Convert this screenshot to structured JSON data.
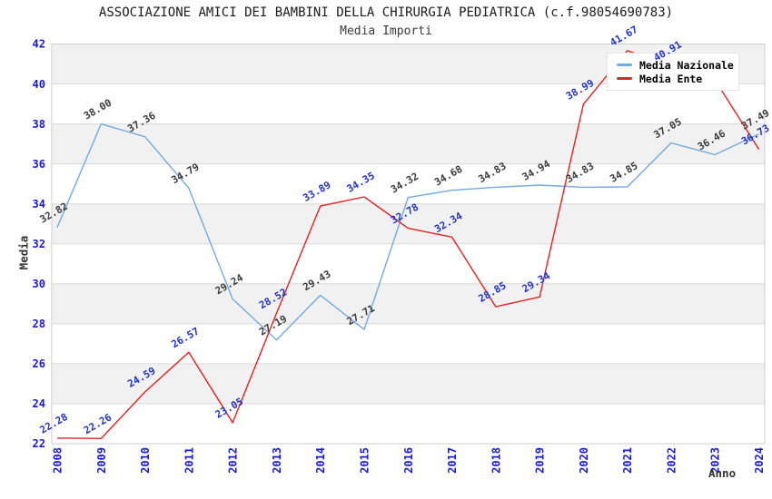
{
  "title": "ASSOCIAZIONE AMICI DEI BAMBINI DELLA CHIRURGIA PEDIATRICA (c.f.98054690783)",
  "subtitle": "Media Importi",
  "legend": {
    "items": [
      {
        "label": "Media Nazionale",
        "color": "#74a9e0"
      },
      {
        "label": "Media Ente",
        "color": "#e62222"
      }
    ]
  },
  "axes": {
    "x_label": "Anno",
    "y_label": "Media",
    "tick_color": "#1a1ad1",
    "y_ticks": [
      22,
      24,
      26,
      28,
      30,
      32,
      34,
      36,
      38,
      40,
      42
    ]
  },
  "chart_data": {
    "type": "line",
    "title": "ASSOCIAZIONE AMICI DEI BAMBINI DELLA CHIRURGIA PEDIATRICA (c.f.98054690783)",
    "subtitle": "Media Importi",
    "xlabel": "Anno",
    "ylabel": "Media",
    "x": [
      "2008",
      "2009",
      "2010",
      "2011",
      "2012",
      "2013",
      "2014",
      "2015",
      "2016",
      "2017",
      "2018",
      "2019",
      "2020",
      "2021",
      "2022",
      "2023",
      "2024"
    ],
    "ylim": [
      22,
      42
    ],
    "grid": true,
    "band_fill": "#f1f1f1",
    "legend_position": "top-right",
    "series": [
      {
        "name": "Media Nazionale",
        "color": "#74a9e0",
        "label_color": "#3b3b3b",
        "values": [
          32.82,
          38.0,
          37.36,
          34.79,
          29.24,
          27.19,
          29.43,
          27.71,
          34.32,
          34.68,
          34.83,
          34.94,
          34.83,
          34.85,
          37.05,
          36.46,
          37.49
        ],
        "hidden_label_indices": []
      },
      {
        "name": "Media Ente",
        "color": "#e62222",
        "label_color": "#2233cc",
        "values": [
          22.28,
          22.26,
          24.59,
          26.57,
          23.05,
          28.52,
          33.89,
          34.35,
          32.78,
          32.34,
          28.85,
          29.34,
          38.99,
          41.67,
          40.91,
          40.2,
          36.73
        ],
        "hidden_label_indices": [
          15
        ]
      }
    ]
  }
}
